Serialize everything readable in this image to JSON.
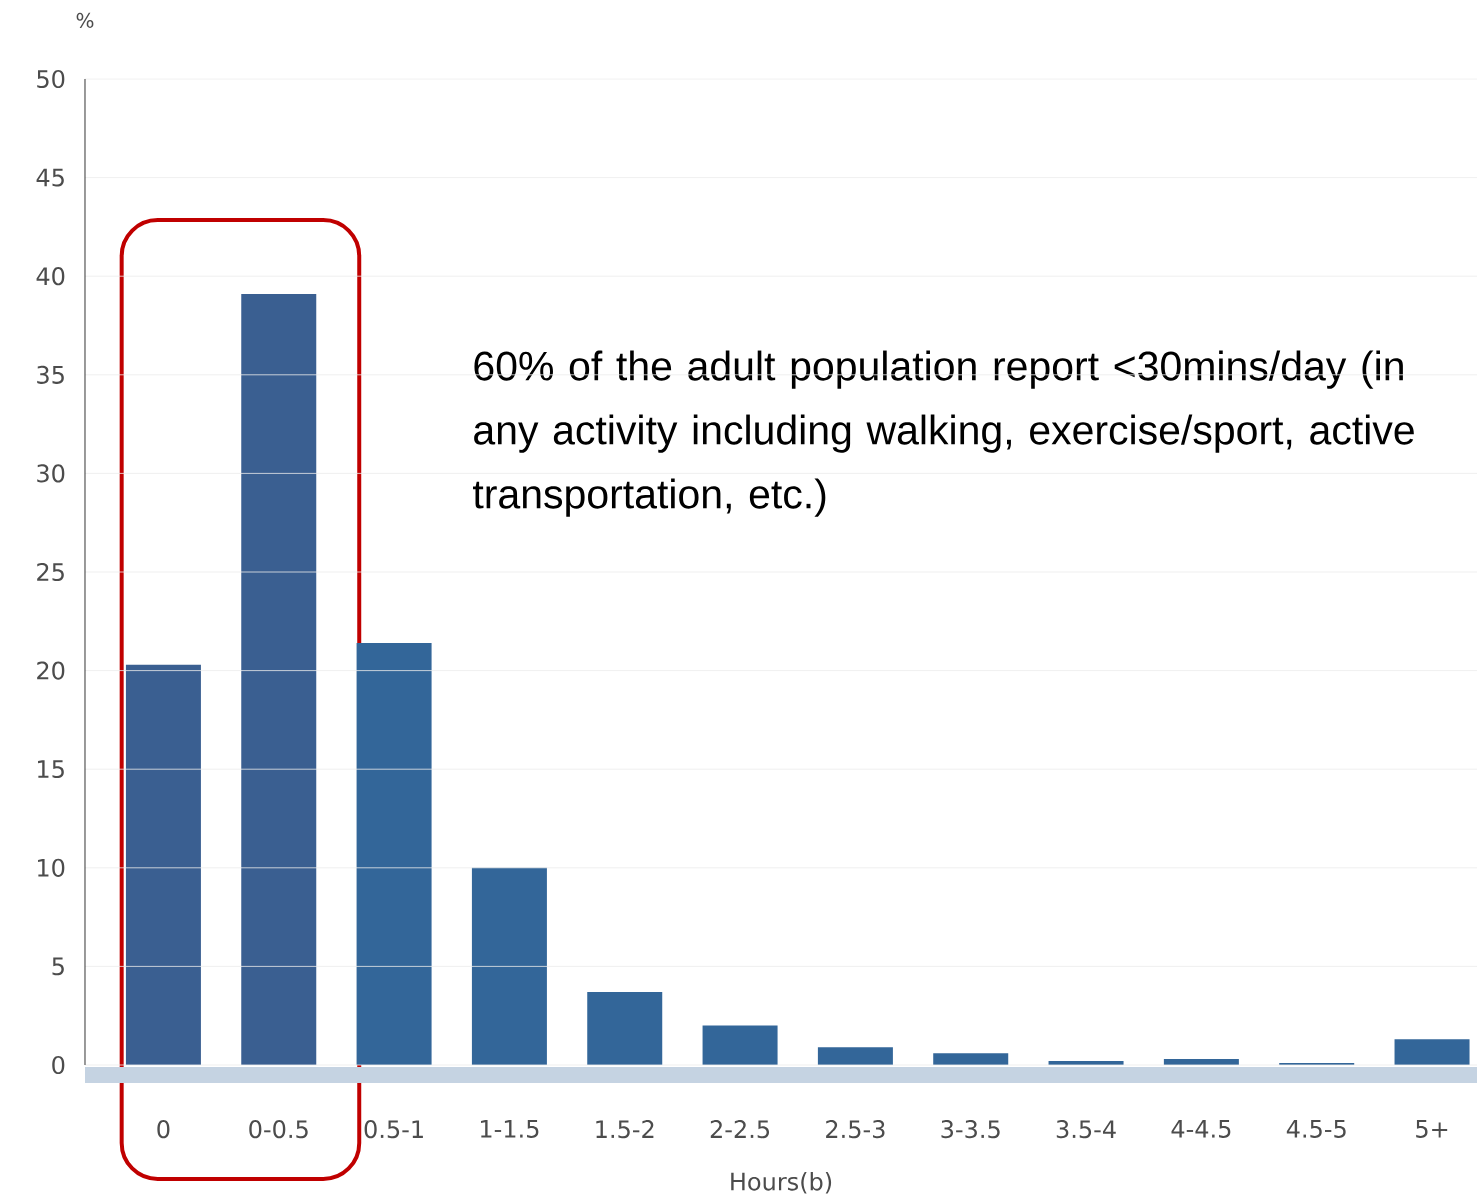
{
  "chart_data": {
    "type": "bar",
    "xlabel": "Hours(b)",
    "ylabel": "%",
    "categories": [
      "0",
      "0-0.5",
      "0.5-1",
      "1-1.5",
      "1.5-2",
      "2-2.5",
      "2.5-3",
      "3-3.5",
      "3.5-4",
      "4-4.5",
      "4.5-5",
      "5+"
    ],
    "values": [
      20.3,
      39.1,
      21.4,
      10.0,
      3.7,
      2.0,
      0.9,
      0.6,
      0.2,
      0.3,
      0.1,
      1.3
    ],
    "colors": [
      "#3a5f91",
      "#3a5f91",
      "#336699",
      "#336699",
      "#336699",
      "#336699",
      "#336699",
      "#336699",
      "#336699",
      "#336699",
      "#336699",
      "#336699"
    ],
    "ylim": [
      0,
      50
    ],
    "yticks": [
      0,
      5,
      10,
      15,
      20,
      25,
      30,
      35,
      40,
      45,
      50
    ],
    "grid": "y",
    "annotations": [
      "60% of the adult population report <30mins/day (in any activity including walking, exercise/sport, active transportation, etc.)"
    ]
  }
}
